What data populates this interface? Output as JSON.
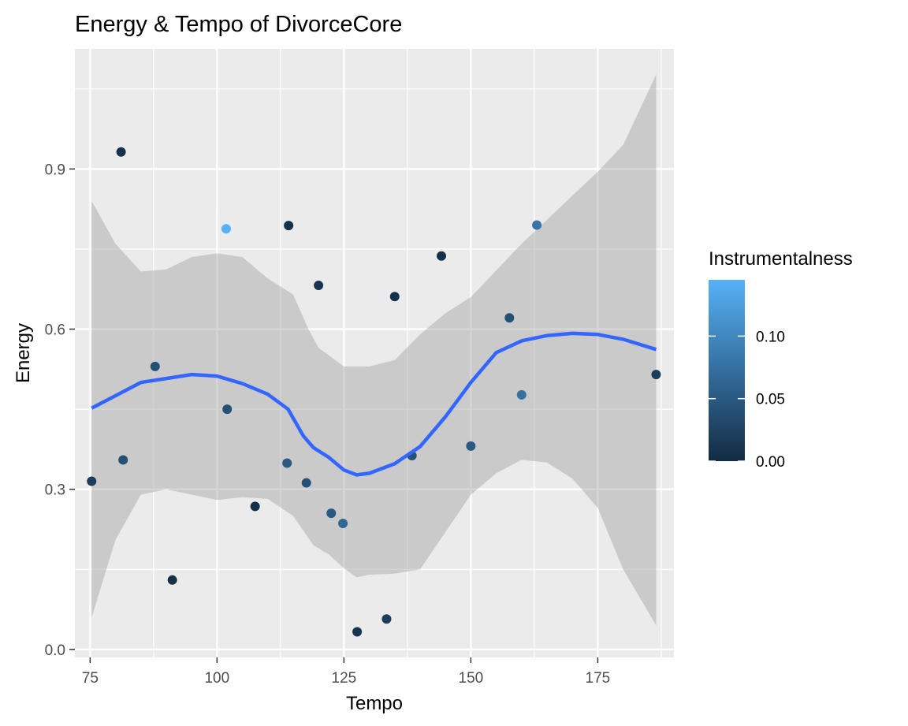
{
  "chart_data": {
    "type": "scatter",
    "title": "Energy & Tempo of DivorceCore",
    "xlabel": "Tempo",
    "ylabel": "Energy",
    "xlim": [
      72,
      190
    ],
    "ylim": [
      -0.015,
      1.125
    ],
    "x_ticks": [
      75,
      100,
      125,
      150,
      175
    ],
    "x_minor_ticks": [
      87.5,
      112.5,
      137.5,
      162.5,
      187.5
    ],
    "y_ticks": [
      0.0,
      0.3,
      0.6,
      0.9
    ],
    "y_tick_labels": [
      "0.0",
      "0.3",
      "0.6",
      "0.9"
    ],
    "y_minor_ticks": [
      0.15,
      0.45,
      0.75,
      1.05
    ],
    "grid": true,
    "points": [
      {
        "x": 75.3,
        "y": 0.315,
        "color_value": 0.02
      },
      {
        "x": 81.1,
        "y": 0.932,
        "color_value": 0.005
      },
      {
        "x": 81.5,
        "y": 0.355,
        "color_value": 0.04
      },
      {
        "x": 87.8,
        "y": 0.53,
        "color_value": 0.04
      },
      {
        "x": 91.2,
        "y": 0.13,
        "color_value": 0.005
      },
      {
        "x": 101.8,
        "y": 0.788,
        "color_value": 0.145
      },
      {
        "x": 102.0,
        "y": 0.45,
        "color_value": 0.04
      },
      {
        "x": 107.5,
        "y": 0.268,
        "color_value": 0.005
      },
      {
        "x": 113.8,
        "y": 0.349,
        "color_value": 0.05
      },
      {
        "x": 114.1,
        "y": 0.794,
        "color_value": 0.005
      },
      {
        "x": 117.6,
        "y": 0.312,
        "color_value": 0.04
      },
      {
        "x": 120.0,
        "y": 0.682,
        "color_value": 0.01
      },
      {
        "x": 122.5,
        "y": 0.255,
        "color_value": 0.05
      },
      {
        "x": 124.8,
        "y": 0.236,
        "color_value": 0.065
      },
      {
        "x": 127.6,
        "y": 0.033,
        "color_value": 0.01
      },
      {
        "x": 133.4,
        "y": 0.057,
        "color_value": 0.02
      },
      {
        "x": 135.0,
        "y": 0.661,
        "color_value": 0.005
      },
      {
        "x": 138.4,
        "y": 0.363,
        "color_value": 0.04
      },
      {
        "x": 144.2,
        "y": 0.737,
        "color_value": 0.005
      },
      {
        "x": 150.0,
        "y": 0.381,
        "color_value": 0.05
      },
      {
        "x": 157.6,
        "y": 0.621,
        "color_value": 0.04
      },
      {
        "x": 160.0,
        "y": 0.477,
        "color_value": 0.075
      },
      {
        "x": 163.0,
        "y": 0.795,
        "color_value": 0.08
      },
      {
        "x": 186.5,
        "y": 0.515,
        "color_value": 0.02
      }
    ],
    "smooth": {
      "color": "#3366FF",
      "band_color": "#999999",
      "curve": [
        [
          75.3,
          0.452
        ],
        [
          85,
          0.5
        ],
        [
          95,
          0.515
        ],
        [
          100,
          0.512
        ],
        [
          105,
          0.498
        ],
        [
          110,
          0.478
        ],
        [
          114,
          0.45
        ],
        [
          117,
          0.4
        ],
        [
          119,
          0.378
        ],
        [
          122,
          0.36
        ],
        [
          125,
          0.336
        ],
        [
          127.5,
          0.327
        ],
        [
          130,
          0.33
        ],
        [
          135,
          0.348
        ],
        [
          140,
          0.38
        ],
        [
          145,
          0.436
        ],
        [
          150,
          0.5
        ],
        [
          155,
          0.556
        ],
        [
          160,
          0.578
        ],
        [
          165,
          0.588
        ],
        [
          170,
          0.592
        ],
        [
          175,
          0.59
        ],
        [
          180,
          0.581
        ],
        [
          186.5,
          0.562
        ]
      ],
      "upper": [
        [
          75.3,
          0.84
        ],
        [
          80,
          0.76
        ],
        [
          85,
          0.708
        ],
        [
          90,
          0.712
        ],
        [
          95,
          0.735
        ],
        [
          100,
          0.742
        ],
        [
          105,
          0.735
        ],
        [
          110,
          0.695
        ],
        [
          115,
          0.665
        ],
        [
          118,
          0.6
        ],
        [
          120,
          0.565
        ],
        [
          125,
          0.53
        ],
        [
          130,
          0.53
        ],
        [
          135,
          0.542
        ],
        [
          140,
          0.59
        ],
        [
          145,
          0.63
        ],
        [
          150,
          0.66
        ],
        [
          155,
          0.71
        ],
        [
          160,
          0.76
        ],
        [
          165,
          0.805
        ],
        [
          170,
          0.85
        ],
        [
          175,
          0.895
        ],
        [
          180,
          0.945
        ],
        [
          186.5,
          1.077
        ]
      ],
      "lower": [
        [
          186.5,
          0.045
        ],
        [
          180,
          0.15
        ],
        [
          175,
          0.265
        ],
        [
          170,
          0.32
        ],
        [
          165,
          0.35
        ],
        [
          160,
          0.355
        ],
        [
          155,
          0.33
        ],
        [
          150,
          0.29
        ],
        [
          145,
          0.22
        ],
        [
          140,
          0.15
        ],
        [
          135,
          0.142
        ],
        [
          130,
          0.14
        ],
        [
          127.5,
          0.135
        ],
        [
          125,
          0.152
        ],
        [
          122,
          0.178
        ],
        [
          119,
          0.195
        ],
        [
          115,
          0.25
        ],
        [
          110,
          0.282
        ],
        [
          105,
          0.285
        ],
        [
          100,
          0.28
        ],
        [
          95,
          0.29
        ],
        [
          90,
          0.3
        ],
        [
          85,
          0.29
        ],
        [
          80,
          0.205
        ],
        [
          75.3,
          0.06
        ]
      ]
    },
    "legend": {
      "title": "Instrumentalness",
      "position": "right",
      "low_color": "#132B43",
      "high_color": "#56B1F7",
      "range": [
        0,
        0.145
      ],
      "ticks": [
        0.0,
        0.05,
        0.1
      ],
      "tick_labels": [
        "0.00",
        "0.05",
        "0.10"
      ]
    }
  }
}
